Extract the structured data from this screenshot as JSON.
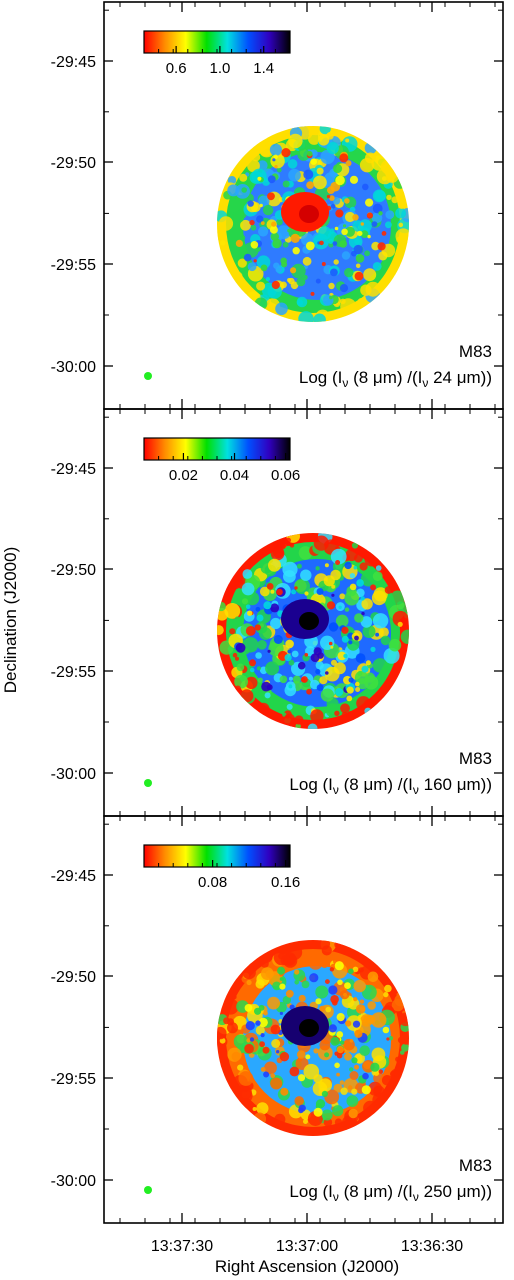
{
  "figure": {
    "ylabel": "Declination (J2000)",
    "xlabel": "Right Ascension (J2000)",
    "x_ticks": [
      "13:37:30",
      "13:37:00",
      "13:36:30"
    ],
    "y_ticks": [
      "-29:45",
      "-29:50",
      "-29:55",
      "-30:00"
    ]
  },
  "colormap": [
    "#ff0000",
    "#ff8c00",
    "#ffff00",
    "#00e000",
    "#00e0e0",
    "#0050ff",
    "#3000c0",
    "#000000"
  ],
  "panels": [
    {
      "object": "M83",
      "quantity_prefix": "Log (I",
      "quantity_sub": "ν",
      "quantity_mid": " (8 μm) /(I",
      "quantity_sub2": "ν",
      "quantity_suffix": " 24 μm))",
      "colorbar_ticks": [
        {
          "label": "0.6",
          "frac": 0.22
        },
        {
          "label": "1.0",
          "frac": 0.52
        },
        {
          "label": "1.4",
          "frac": 0.82
        }
      ]
    },
    {
      "object": "M83",
      "quantity_prefix": "Log (I",
      "quantity_sub": "ν",
      "quantity_mid": " (8 μm) /(I",
      "quantity_sub2": "ν",
      "quantity_suffix": " 160 μm))",
      "colorbar_ticks": [
        {
          "label": "0.02",
          "frac": 0.27
        },
        {
          "label": "0.04",
          "frac": 0.62
        },
        {
          "label": "0.06",
          "frac": 0.97
        }
      ]
    },
    {
      "object": "M83",
      "quantity_prefix": "Log (I",
      "quantity_sub": "ν",
      "quantity_mid": " (8 μm) /(I",
      "quantity_sub2": "ν",
      "quantity_suffix": " 250 μm))",
      "colorbar_ticks": [
        {
          "label": "0.08",
          "frac": 0.47
        },
        {
          "label": "0.16",
          "frac": 0.97
        }
      ]
    }
  ]
}
